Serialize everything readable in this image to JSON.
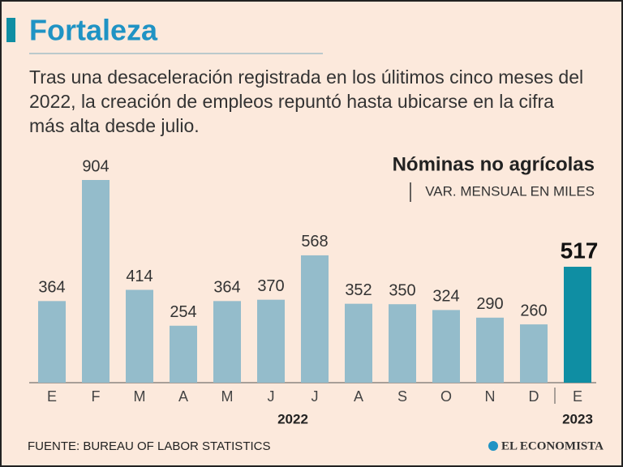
{
  "header": {
    "title": "Fortaleza",
    "subtitle_lines": [
      "Tras una desaceleración registrada en los úlitimos cinco meses del",
      "2022, la creación de empleos repuntó hasta ubicarse en la cifra",
      "más alta desde julio."
    ]
  },
  "chart_data": {
    "type": "bar",
    "title": "Nóminas no agrícolas",
    "subtitle": "VAR. MENSUAL EN MILES",
    "categories": [
      "E",
      "F",
      "M",
      "A",
      "M",
      "J",
      "J",
      "A",
      "S",
      "O",
      "N",
      "D",
      "E"
    ],
    "values": [
      364,
      904,
      414,
      254,
      364,
      370,
      568,
      352,
      350,
      324,
      290,
      260,
      517
    ],
    "colors": [
      "#94bccb",
      "#94bccb",
      "#94bccb",
      "#94bccb",
      "#94bccb",
      "#94bccb",
      "#94bccb",
      "#94bccb",
      "#94bccb",
      "#94bccb",
      "#94bccb",
      "#94bccb",
      "#0f8ea3"
    ],
    "years": [
      "2022",
      "2023"
    ]
  },
  "footer": {
    "source": "FUENTE: BUREAU OF LABOR STATISTICS",
    "logo": "EL ECONOMISTA"
  }
}
